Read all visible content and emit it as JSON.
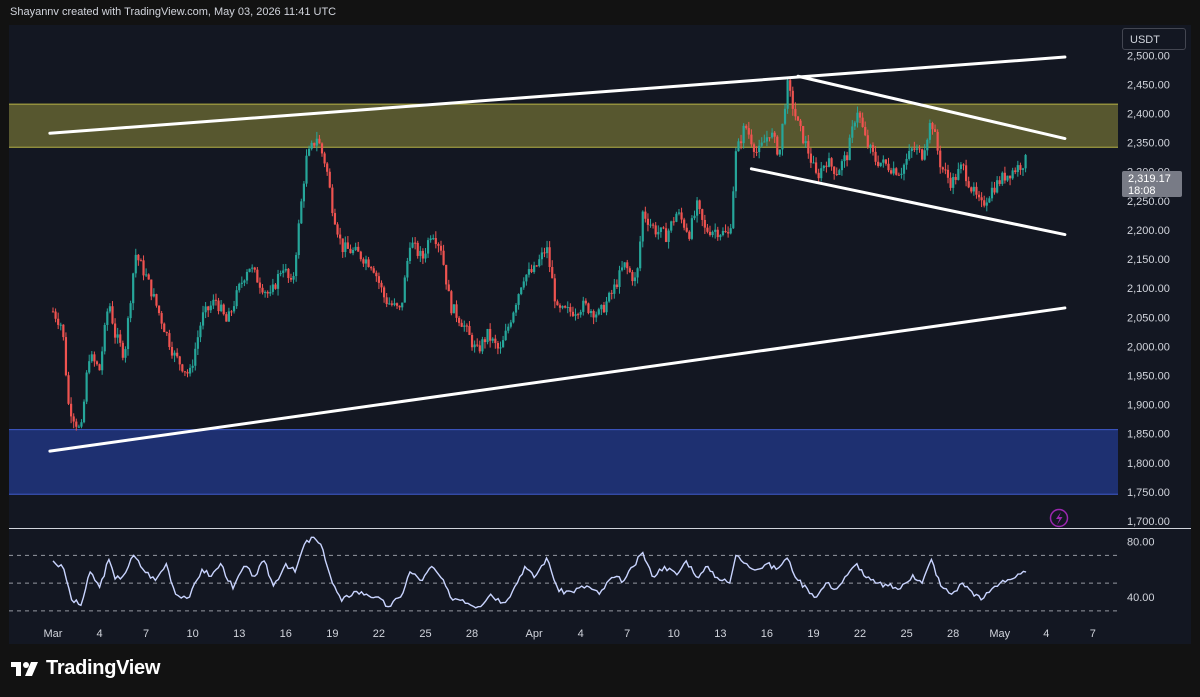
{
  "header": {
    "text": "Shayannv created with TradingView.com, May 03, 2026 11:41 UTC"
  },
  "currency_button": {
    "label": "USDT"
  },
  "brand": {
    "name": "TradingView"
  },
  "last_price": {
    "value": "2,319.17",
    "countdown": "18:08",
    "color": "#787b86"
  },
  "alert_icon": {
    "icon": "lightning-bolt-icon",
    "color": "#9c27b0"
  },
  "colors": {
    "up": "#26a69a",
    "down": "#ef5350",
    "supply_zone": "#8f8c3a",
    "demand_zone": "#233a8c",
    "trendline": "#ffffff",
    "rsi_line": "#c9d4ff"
  },
  "chart_data": {
    "type": "candlestick",
    "symbol_currency": "USDT",
    "price_axis": {
      "ticks": [
        2500,
        2450,
        2400,
        2350,
        2300,
        2250,
        2200,
        2150,
        2100,
        2050,
        2000,
        1950,
        1900,
        1850,
        1800,
        1750,
        1700
      ],
      "labels": [
        "2,500.00",
        "2,450.00",
        "2,400.00",
        "2,350.00",
        "2,300.00",
        "2,250.00",
        "2,200.00",
        "2,150.00",
        "2,100.00",
        "2,050.00",
        "2,000.00",
        "1,950.00",
        "1,900.00",
        "1,850.00",
        "1,800.00",
        "1,750.00",
        "1,700.00"
      ],
      "range": [
        1688,
        2552
      ]
    },
    "time_axis": {
      "ticks": [
        {
          "day": 1,
          "label": "Mar"
        },
        {
          "day": 4,
          "label": "4"
        },
        {
          "day": 7,
          "label": "7"
        },
        {
          "day": 10,
          "label": "10"
        },
        {
          "day": 13,
          "label": "13"
        },
        {
          "day": 16,
          "label": "16"
        },
        {
          "day": 19,
          "label": "19"
        },
        {
          "day": 22,
          "label": "22"
        },
        {
          "day": 25,
          "label": "25"
        },
        {
          "day": 28,
          "label": "28"
        },
        {
          "day": 32,
          "label": "Apr"
        },
        {
          "day": 35,
          "label": "4"
        },
        {
          "day": 38,
          "label": "7"
        },
        {
          "day": 41,
          "label": "10"
        },
        {
          "day": 44,
          "label": "13"
        },
        {
          "day": 47,
          "label": "16"
        },
        {
          "day": 50,
          "label": "19"
        },
        {
          "day": 53,
          "label": "22"
        },
        {
          "day": 56,
          "label": "25"
        },
        {
          "day": 59,
          "label": "28"
        },
        {
          "day": 62,
          "label": "May"
        },
        {
          "day": 65,
          "label": "4"
        },
        {
          "day": 68,
          "label": "7"
        }
      ]
    },
    "zones": [
      {
        "name": "supply",
        "from": 2342,
        "to": 2416
      },
      {
        "name": "demand",
        "from": 1746,
        "to": 1857
      }
    ],
    "trendlines": [
      {
        "name": "channel-top",
        "x1": -0.2,
        "y1": 2366,
        "x2": 65.2,
        "y2": 2497
      },
      {
        "name": "channel-bottom",
        "x1": -0.2,
        "y1": 1820,
        "x2": 65.2,
        "y2": 2066
      },
      {
        "name": "wedge-top",
        "x1": 48,
        "y1": 2464,
        "x2": 65.2,
        "y2": 2357
      },
      {
        "name": "wedge-bottom",
        "x1": 45,
        "y1": 2305,
        "x2": 65.2,
        "y2": 2192
      }
    ],
    "price_path": [
      {
        "d": 0,
        "p": 2060
      },
      {
        "d": 0.6,
        "p": 2035
      },
      {
        "d": 1,
        "p": 1900
      },
      {
        "d": 1.8,
        "p": 1850
      },
      {
        "d": 2.3,
        "p": 1985
      },
      {
        "d": 3,
        "p": 1960
      },
      {
        "d": 3.6,
        "p": 2080
      },
      {
        "d": 4,
        "p": 2020
      },
      {
        "d": 4.6,
        "p": 1985
      },
      {
        "d": 5.3,
        "p": 2160
      },
      {
        "d": 6,
        "p": 2120
      },
      {
        "d": 6.8,
        "p": 2060
      },
      {
        "d": 7.8,
        "p": 1985
      },
      {
        "d": 8.8,
        "p": 1950
      },
      {
        "d": 9.6,
        "p": 2050
      },
      {
        "d": 10.5,
        "p": 2080
      },
      {
        "d": 11.2,
        "p": 2040
      },
      {
        "d": 12,
        "p": 2100
      },
      {
        "d": 12.6,
        "p": 2140
      },
      {
        "d": 13.3,
        "p": 2110
      },
      {
        "d": 14,
        "p": 2085
      },
      {
        "d": 14.8,
        "p": 2140
      },
      {
        "d": 15.4,
        "p": 2100
      },
      {
        "d": 16.3,
        "p": 2320
      },
      {
        "d": 17,
        "p": 2360
      },
      {
        "d": 17.6,
        "p": 2310
      },
      {
        "d": 18,
        "p": 2240
      },
      {
        "d": 18.6,
        "p": 2170
      },
      {
        "d": 19.6,
        "p": 2160
      },
      {
        "d": 20.6,
        "p": 2140
      },
      {
        "d": 21.4,
        "p": 2080
      },
      {
        "d": 22.4,
        "p": 2060
      },
      {
        "d": 23,
        "p": 2180
      },
      {
        "d": 23.8,
        "p": 2150
      },
      {
        "d": 24.4,
        "p": 2200
      },
      {
        "d": 25,
        "p": 2170
      },
      {
        "d": 25.6,
        "p": 2070
      },
      {
        "d": 26.4,
        "p": 2040
      },
      {
        "d": 27.3,
        "p": 1990
      },
      {
        "d": 28,
        "p": 2020
      },
      {
        "d": 28.8,
        "p": 1990
      },
      {
        "d": 29.4,
        "p": 2040
      },
      {
        "d": 30.3,
        "p": 2120
      },
      {
        "d": 31,
        "p": 2130
      },
      {
        "d": 31.8,
        "p": 2170
      },
      {
        "d": 32.5,
        "p": 2060
      },
      {
        "d": 33.4,
        "p": 2060
      },
      {
        "d": 34.2,
        "p": 2070
      },
      {
        "d": 35.2,
        "p": 2055
      },
      {
        "d": 36,
        "p": 2090
      },
      {
        "d": 36.8,
        "p": 2140
      },
      {
        "d": 37.6,
        "p": 2110
      },
      {
        "d": 38,
        "p": 2230
      },
      {
        "d": 38.8,
        "p": 2200
      },
      {
        "d": 39.5,
        "p": 2190
      },
      {
        "d": 40.2,
        "p": 2230
      },
      {
        "d": 41,
        "p": 2195
      },
      {
        "d": 41.5,
        "p": 2240
      },
      {
        "d": 42,
        "p": 2200
      },
      {
        "d": 42.7,
        "p": 2200
      },
      {
        "d": 43.6,
        "p": 2190
      },
      {
        "d": 44,
        "p": 2330
      },
      {
        "d": 44.6,
        "p": 2380
      },
      {
        "d": 45.4,
        "p": 2330
      },
      {
        "d": 46.2,
        "p": 2370
      },
      {
        "d": 46.8,
        "p": 2330
      },
      {
        "d": 47.3,
        "p": 2450
      },
      {
        "d": 48,
        "p": 2380
      },
      {
        "d": 48.6,
        "p": 2340
      },
      {
        "d": 49.2,
        "p": 2290
      },
      {
        "d": 49.8,
        "p": 2320
      },
      {
        "d": 50.5,
        "p": 2300
      },
      {
        "d": 51.2,
        "p": 2330
      },
      {
        "d": 51.8,
        "p": 2410
      },
      {
        "d": 52.4,
        "p": 2350
      },
      {
        "d": 53,
        "p": 2320
      },
      {
        "d": 53.8,
        "p": 2310
      },
      {
        "d": 54.6,
        "p": 2300
      },
      {
        "d": 55.4,
        "p": 2340
      },
      {
        "d": 56,
        "p": 2330
      },
      {
        "d": 56.6,
        "p": 2390
      },
      {
        "d": 57.2,
        "p": 2310
      },
      {
        "d": 57.9,
        "p": 2280
      },
      {
        "d": 58.6,
        "p": 2310
      },
      {
        "d": 59.2,
        "p": 2270
      },
      {
        "d": 59.8,
        "p": 2240
      },
      {
        "d": 60.5,
        "p": 2270
      },
      {
        "d": 61.2,
        "p": 2290
      },
      {
        "d": 62,
        "p": 2305
      },
      {
        "d": 62.7,
        "p": 2319
      }
    ],
    "rsi": {
      "ticks": [
        80,
        40
      ],
      "labels": [
        "80.00",
        "40.00"
      ],
      "levels": [
        70,
        50,
        30
      ],
      "range": [
        22,
        89
      ],
      "path": [
        {
          "d": 0,
          "p": 66
        },
        {
          "d": 0.7,
          "p": 60
        },
        {
          "d": 1.2,
          "p": 38
        },
        {
          "d": 1.8,
          "p": 34
        },
        {
          "d": 2.4,
          "p": 58
        },
        {
          "d": 3,
          "p": 47
        },
        {
          "d": 3.6,
          "p": 67
        },
        {
          "d": 4,
          "p": 53
        },
        {
          "d": 4.5,
          "p": 55
        },
        {
          "d": 5.2,
          "p": 70
        },
        {
          "d": 5.8,
          "p": 60
        },
        {
          "d": 6.6,
          "p": 52
        },
        {
          "d": 7.3,
          "p": 64
        },
        {
          "d": 7.9,
          "p": 42
        },
        {
          "d": 8.8,
          "p": 40
        },
        {
          "d": 9.6,
          "p": 60
        },
        {
          "d": 10.2,
          "p": 55
        },
        {
          "d": 10.8,
          "p": 64
        },
        {
          "d": 11.6,
          "p": 46
        },
        {
          "d": 12.3,
          "p": 62
        },
        {
          "d": 13,
          "p": 55
        },
        {
          "d": 13.6,
          "p": 66
        },
        {
          "d": 14.2,
          "p": 48
        },
        {
          "d": 15,
          "p": 64
        },
        {
          "d": 15.6,
          "p": 58
        },
        {
          "d": 16.2,
          "p": 78
        },
        {
          "d": 16.8,
          "p": 83
        },
        {
          "d": 17.4,
          "p": 74
        },
        {
          "d": 18,
          "p": 50
        },
        {
          "d": 18.6,
          "p": 37
        },
        {
          "d": 19.4,
          "p": 44
        },
        {
          "d": 20.2,
          "p": 42
        },
        {
          "d": 20.8,
          "p": 40
        },
        {
          "d": 21.6,
          "p": 33
        },
        {
          "d": 22.4,
          "p": 40
        },
        {
          "d": 23,
          "p": 58
        },
        {
          "d": 23.8,
          "p": 52
        },
        {
          "d": 24.4,
          "p": 62
        },
        {
          "d": 25,
          "p": 54
        },
        {
          "d": 25.6,
          "p": 40
        },
        {
          "d": 26.4,
          "p": 38
        },
        {
          "d": 27.4,
          "p": 33
        },
        {
          "d": 28.2,
          "p": 42
        },
        {
          "d": 29,
          "p": 36
        },
        {
          "d": 29.6,
          "p": 44
        },
        {
          "d": 30.4,
          "p": 62
        },
        {
          "d": 31,
          "p": 54
        },
        {
          "d": 31.8,
          "p": 68
        },
        {
          "d": 32.6,
          "p": 44
        },
        {
          "d": 33.4,
          "p": 44
        },
        {
          "d": 34.4,
          "p": 48
        },
        {
          "d": 35.2,
          "p": 42
        },
        {
          "d": 36,
          "p": 54
        },
        {
          "d": 36.8,
          "p": 52
        },
        {
          "d": 37.4,
          "p": 62
        },
        {
          "d": 38,
          "p": 72
        },
        {
          "d": 38.6,
          "p": 55
        },
        {
          "d": 39.4,
          "p": 62
        },
        {
          "d": 40.2,
          "p": 56
        },
        {
          "d": 40.8,
          "p": 66
        },
        {
          "d": 41.6,
          "p": 54
        },
        {
          "d": 42.2,
          "p": 62
        },
        {
          "d": 42.8,
          "p": 54
        },
        {
          "d": 43.6,
          "p": 50
        },
        {
          "d": 44,
          "p": 70
        },
        {
          "d": 44.7,
          "p": 64
        },
        {
          "d": 45.4,
          "p": 60
        },
        {
          "d": 46,
          "p": 64
        },
        {
          "d": 46.6,
          "p": 60
        },
        {
          "d": 47.3,
          "p": 68
        },
        {
          "d": 48,
          "p": 52
        },
        {
          "d": 48.6,
          "p": 46
        },
        {
          "d": 49.2,
          "p": 40
        },
        {
          "d": 49.8,
          "p": 50
        },
        {
          "d": 50.5,
          "p": 46
        },
        {
          "d": 51.2,
          "p": 56
        },
        {
          "d": 51.8,
          "p": 64
        },
        {
          "d": 52.4,
          "p": 54
        },
        {
          "d": 53,
          "p": 50
        },
        {
          "d": 53.8,
          "p": 48
        },
        {
          "d": 54.6,
          "p": 46
        },
        {
          "d": 55.4,
          "p": 56
        },
        {
          "d": 56,
          "p": 50
        },
        {
          "d": 56.6,
          "p": 67
        },
        {
          "d": 57.2,
          "p": 48
        },
        {
          "d": 57.9,
          "p": 42
        },
        {
          "d": 58.6,
          "p": 50
        },
        {
          "d": 59.2,
          "p": 44
        },
        {
          "d": 59.8,
          "p": 38
        },
        {
          "d": 60.5,
          "p": 46
        },
        {
          "d": 61.2,
          "p": 52
        },
        {
          "d": 62,
          "p": 54
        },
        {
          "d": 62.7,
          "p": 58
        }
      ]
    }
  }
}
